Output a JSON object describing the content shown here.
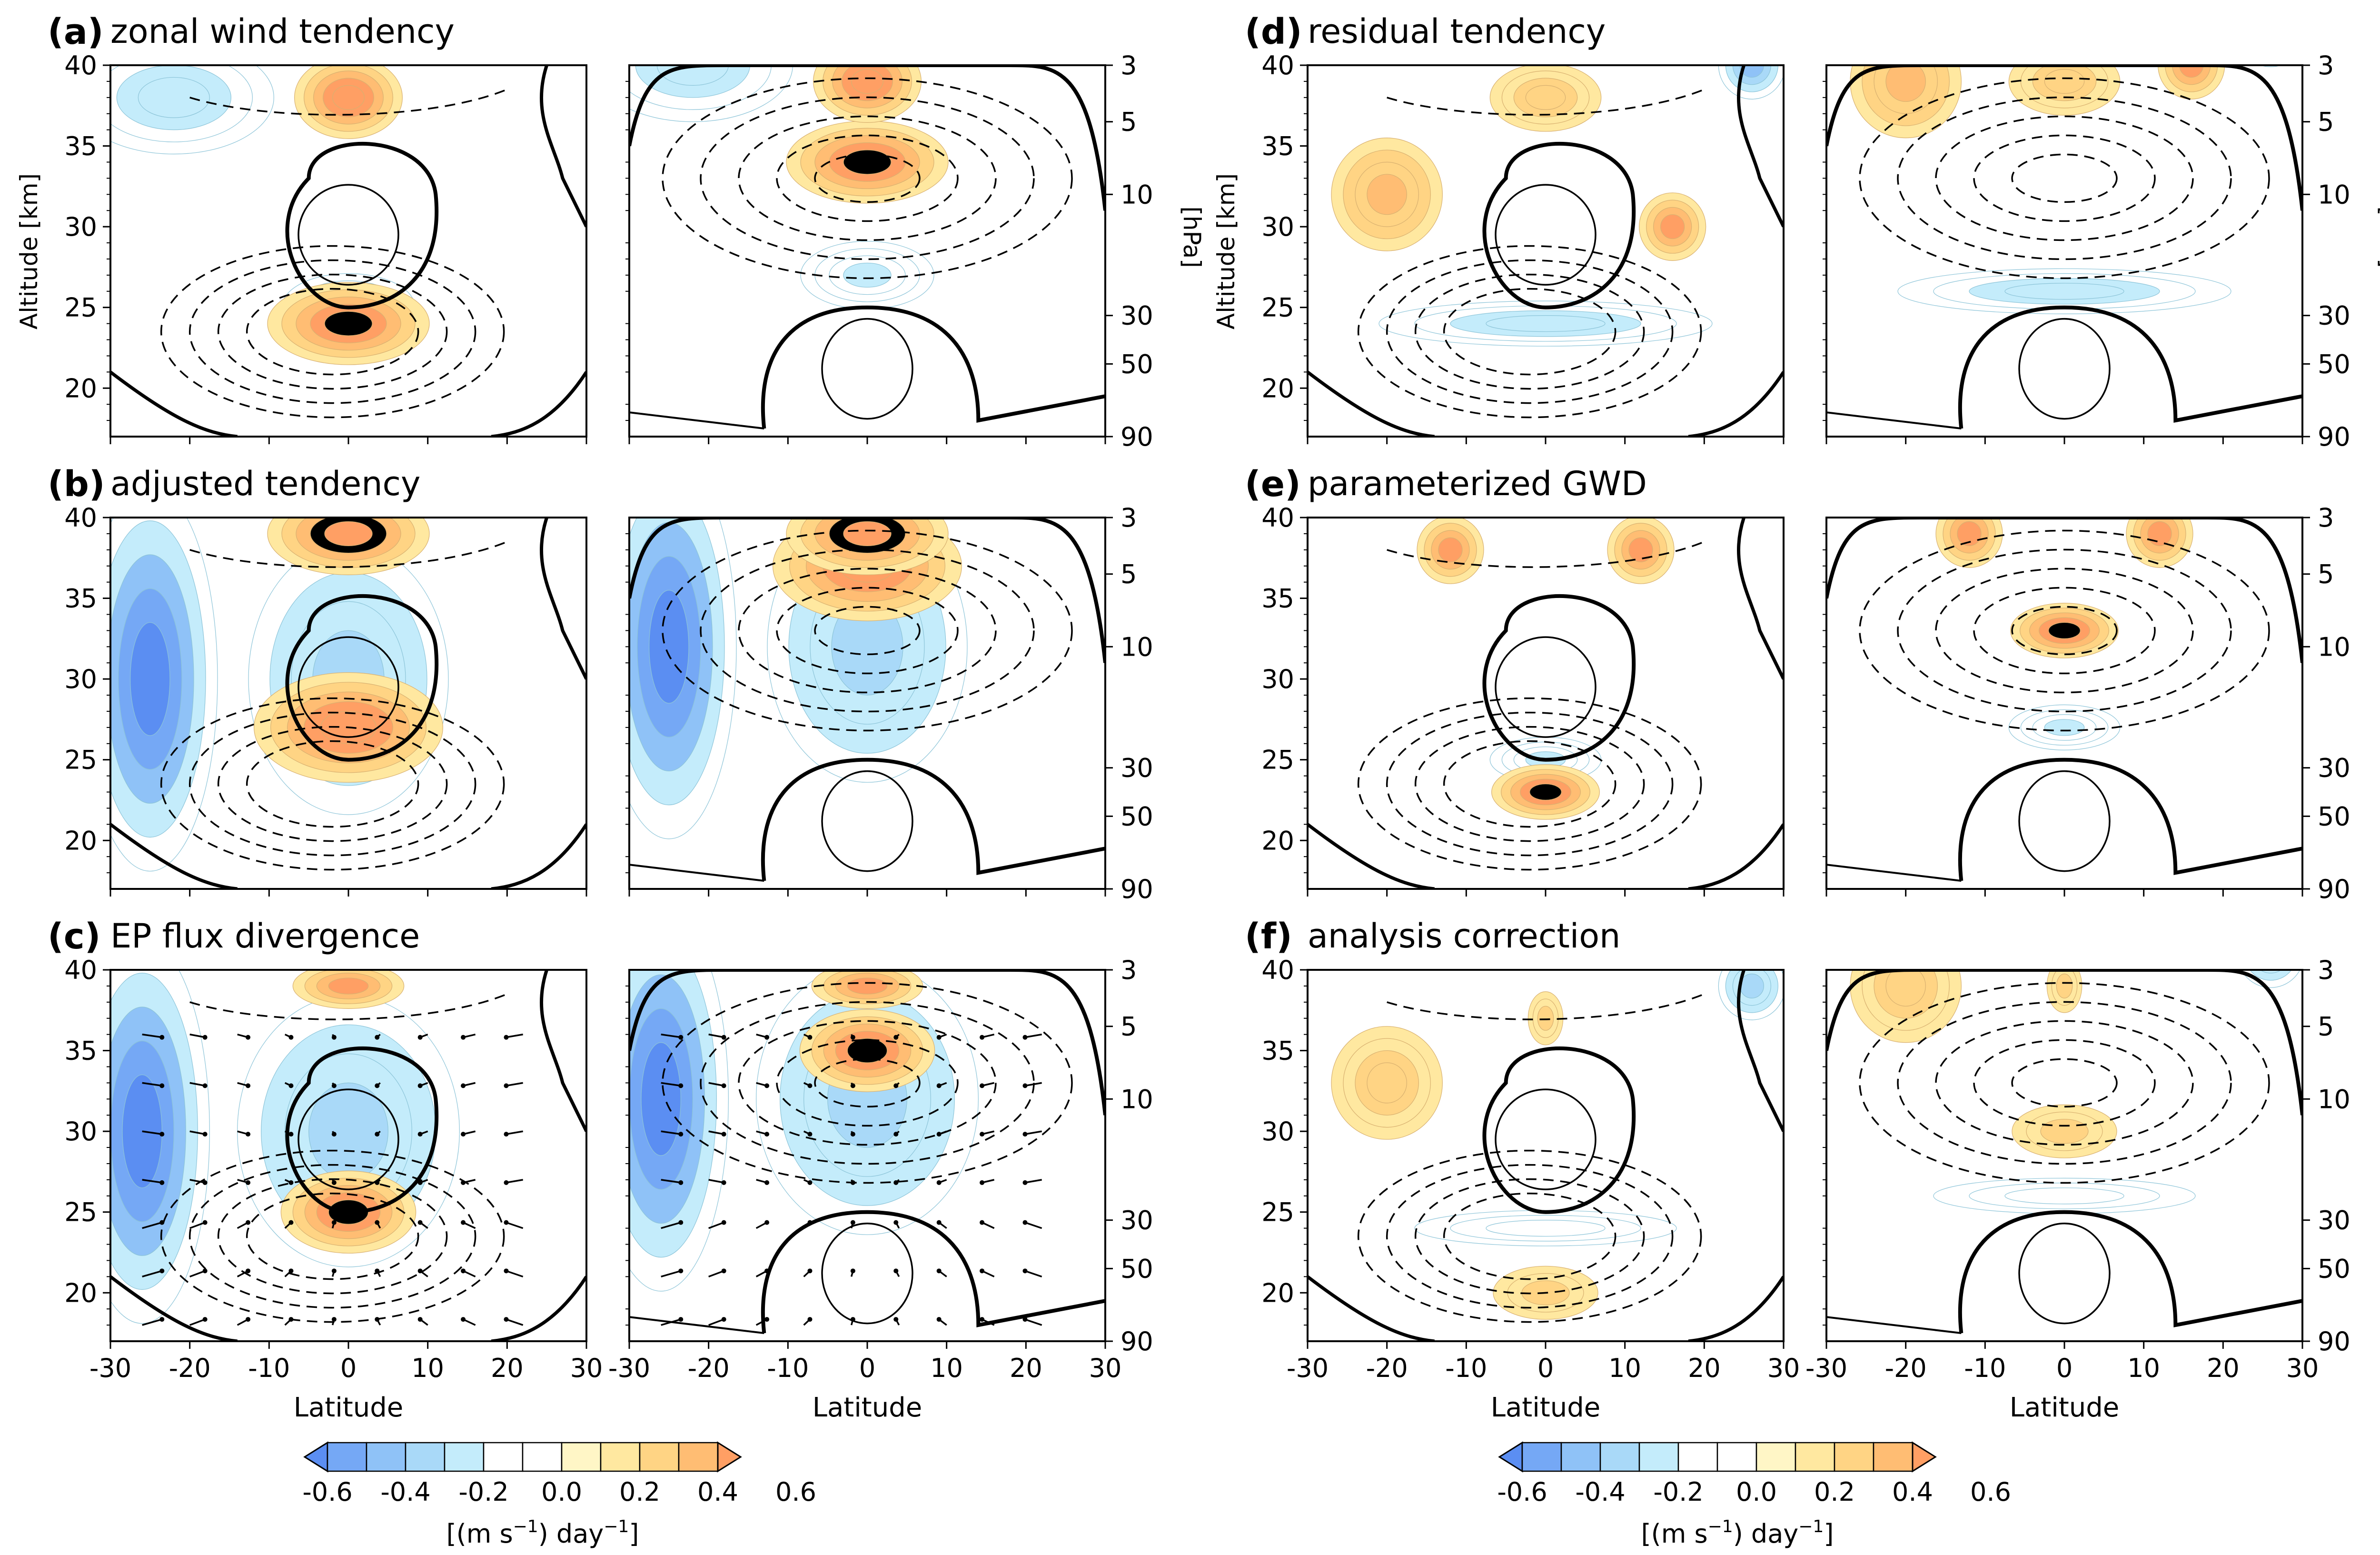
{
  "chart_data": {
    "type": "contour",
    "colorbar": {
      "levels": [
        -0.7,
        -0.6,
        -0.5,
        -0.4,
        -0.3,
        -0.2,
        -0.1,
        0.0,
        0.1,
        0.2,
        0.3,
        0.4,
        0.5,
        0.6,
        0.7
      ],
      "colors": [
        "#5b8ef2",
        "#75a8f5",
        "#8fc2f7",
        "#a9d9f8",
        "#c4ecfb",
        "#ffffff",
        "#ffffff",
        "#fff6c6",
        "#ffe8a0",
        "#ffd484",
        "#ffbd73",
        "#ff9f64"
      ],
      "tick_labels": [
        "-0.6",
        "-0.4",
        "-0.2",
        "0.0",
        "0.2",
        "0.4",
        "0.6"
      ],
      "label_prefix": "[(m s",
      "label_exp1": "−1",
      "label_mid": ") day",
      "label_exp2": "−1",
      "label_suffix": "]"
    },
    "axes": {
      "xlabel": "Latitude",
      "ylabel": "Altitude [km]",
      "pressure_label": "[hPa]",
      "xlim": [
        -30,
        30
      ],
      "ylim": [
        17,
        40
      ],
      "x_ticks": [
        "-30",
        "-20",
        "-10",
        "0",
        "10",
        "20",
        "30"
      ],
      "y_ticks": [
        "20",
        "25",
        "30",
        "35",
        "40"
      ],
      "pressure_ticks": [
        "3",
        "5",
        "10",
        "30",
        "50",
        "90"
      ]
    },
    "panels": [
      {
        "letter": "(a)",
        "title": "zonal wind tendency",
        "easterly_blobs": [
          [
            0,
            24,
            12,
            3,
            0.55
          ],
          [
            0,
            38,
            8,
            3,
            0.6
          ]
        ],
        "westerly_blobs": [
          [
            -22,
            38,
            18,
            5,
            -0.3
          ],
          [
            0,
            25,
            12,
            3,
            -0.25
          ]
        ],
        "vectors": false
      },
      {
        "letter": "(b)",
        "title": "adjusted tendency",
        "easterly_blobs": [
          [
            0,
            27,
            14,
            4,
            0.6
          ],
          [
            0,
            39,
            12,
            3,
            0.65
          ]
        ],
        "westerly_blobs": [
          [
            -25,
            30,
            10,
            14,
            -0.7
          ],
          [
            0,
            30,
            18,
            12,
            -0.35
          ]
        ],
        "vectors": false
      },
      {
        "letter": "(c)",
        "title": "EP flux divergence",
        "easterly_blobs": [
          [
            0,
            25,
            10,
            3,
            0.55
          ],
          [
            0,
            39,
            10,
            2,
            0.45
          ]
        ],
        "westerly_blobs": [
          [
            -26,
            30,
            10,
            14,
            -0.7
          ],
          [
            0,
            30,
            20,
            12,
            -0.35
          ]
        ],
        "vectors": true
      },
      {
        "letter": "(d)",
        "title": "residual tendency",
        "easterly_blobs": [
          [
            -20,
            32,
            10,
            5,
            0.35
          ],
          [
            16,
            30,
            6,
            3,
            0.45
          ],
          [
            0,
            38,
            10,
            3,
            0.25
          ]
        ],
        "westerly_blobs": [
          [
            0,
            24,
            30,
            2,
            -0.3
          ],
          [
            26,
            40,
            6,
            3,
            -0.45
          ]
        ],
        "vectors": false
      },
      {
        "letter": "(e)",
        "title": "parameterized GWD",
        "easterly_blobs": [
          [
            0,
            23,
            8,
            2,
            0.5
          ],
          [
            -12,
            38,
            6,
            3,
            0.45
          ],
          [
            12,
            38,
            6,
            3,
            0.45
          ]
        ],
        "westerly_blobs": [
          [
            0,
            25,
            10,
            2,
            -0.25
          ]
        ],
        "vectors": false
      },
      {
        "letter": "(f)",
        "title": "analysis correction",
        "easterly_blobs": [
          [
            -20,
            33,
            10,
            5,
            0.25
          ],
          [
            0,
            20,
            12,
            3,
            0.2
          ],
          [
            0,
            37,
            4,
            3,
            0.2
          ]
        ],
        "westerly_blobs": [
          [
            0,
            24,
            30,
            2,
            -0.2
          ],
          [
            26,
            39,
            6,
            3,
            -0.35
          ]
        ],
        "vectors": false
      }
    ]
  }
}
